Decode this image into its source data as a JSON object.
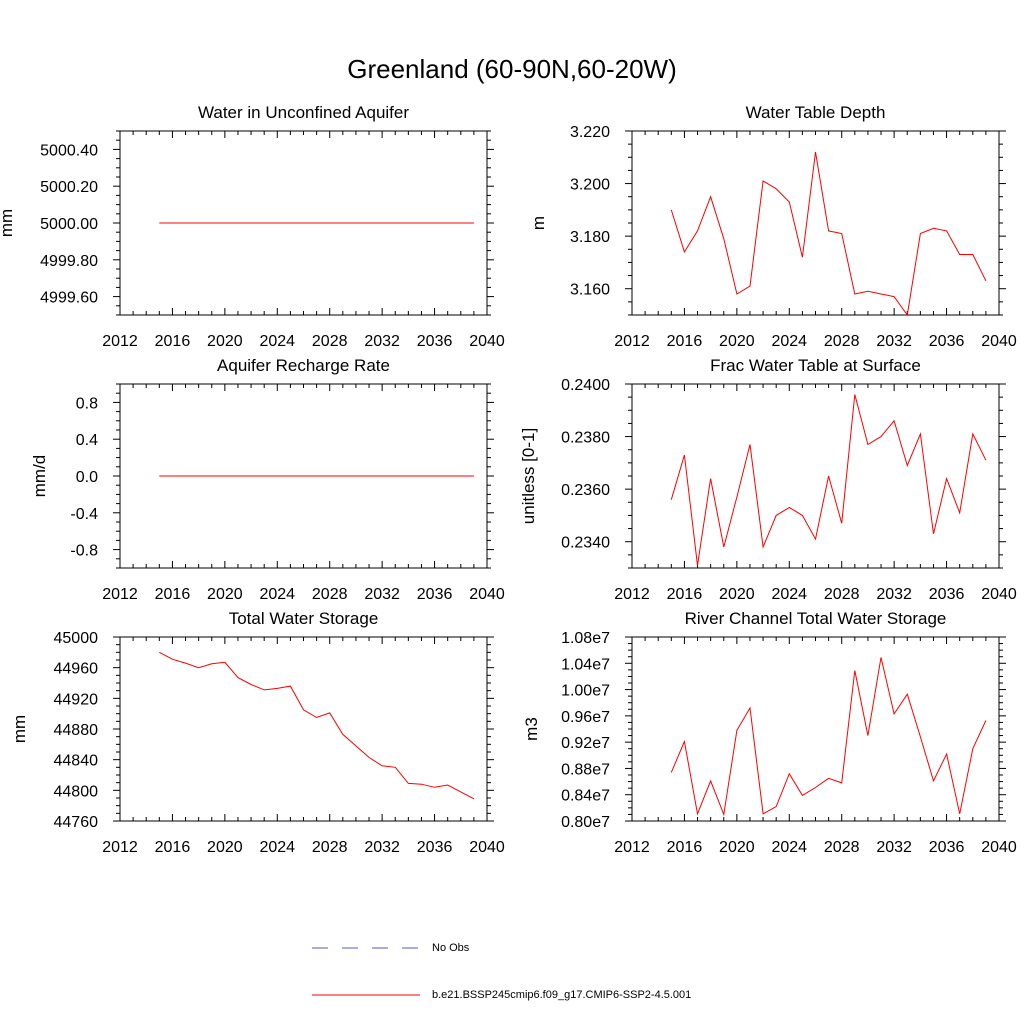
{
  "figure": {
    "title": "Greenland (60-90N,60-20W)"
  },
  "legend": [
    {
      "label": "No Obs",
      "color": "#5a5ab4",
      "style": "dashed"
    },
    {
      "label": "b.e21.BSSP245cmip6.f09_g17.CMIP6-SSP2-4.5.001",
      "color": "#ff0000",
      "style": "solid"
    }
  ],
  "chart_data": [
    {
      "type": "line",
      "title": "Water in Unconfined Aquifer",
      "ylabel": "mm",
      "xlim": [
        2012,
        2040
      ],
      "ylim": [
        4999.5,
        5000.5
      ],
      "xticks": [
        2012,
        2016,
        2020,
        2024,
        2028,
        2032,
        2036,
        2040
      ],
      "yticks": [
        4999.6,
        4999.8,
        5000.0,
        5000.2,
        5000.4
      ],
      "ytick_labels": [
        "4999.60",
        "4999.80",
        "5000.00",
        "5000.20",
        "5000.40"
      ],
      "series": [
        {
          "color": "#ff0000",
          "x": [
            2015,
            2016,
            2017,
            2018,
            2019,
            2020,
            2021,
            2022,
            2023,
            2024,
            2025,
            2026,
            2027,
            2028,
            2029,
            2030,
            2031,
            2032,
            2033,
            2034,
            2035,
            2036,
            2037,
            2038,
            2039
          ],
          "y": [
            5000,
            5000,
            5000,
            5000,
            5000,
            5000,
            5000,
            5000,
            5000,
            5000,
            5000,
            5000,
            5000,
            5000,
            5000,
            5000,
            5000,
            5000,
            5000,
            5000,
            5000,
            5000,
            5000,
            5000,
            5000
          ]
        }
      ]
    },
    {
      "type": "line",
      "title": "Water Table Depth",
      "ylabel": "m",
      "xlim": [
        2012,
        2040
      ],
      "ylim": [
        3.15,
        3.22
      ],
      "xticks": [
        2012,
        2016,
        2020,
        2024,
        2028,
        2032,
        2036,
        2040
      ],
      "yticks": [
        3.16,
        3.18,
        3.2,
        3.22
      ],
      "ytick_labels": [
        "3.160",
        "3.180",
        "3.200",
        "3.220"
      ],
      "series": [
        {
          "color": "#ff0000",
          "x": [
            2015,
            2016,
            2017,
            2018,
            2019,
            2020,
            2021,
            2022,
            2023,
            2024,
            2025,
            2026,
            2027,
            2028,
            2029,
            2030,
            2031,
            2032,
            2033,
            2034,
            2035,
            2036,
            2037,
            2038,
            2039
          ],
          "y": [
            3.19,
            3.174,
            3.182,
            3.195,
            3.179,
            3.158,
            3.161,
            3.201,
            3.198,
            3.193,
            3.172,
            3.212,
            3.182,
            3.181,
            3.158,
            3.159,
            3.158,
            3.157,
            3.15,
            3.181,
            3.183,
            3.182,
            3.173,
            3.173,
            3.163
          ]
        }
      ]
    },
    {
      "type": "line",
      "title": "Aquifer Recharge Rate",
      "ylabel": "mm/d",
      "xlim": [
        2012,
        2040
      ],
      "ylim": [
        -1.0,
        1.0
      ],
      "xticks": [
        2012,
        2016,
        2020,
        2024,
        2028,
        2032,
        2036,
        2040
      ],
      "yticks": [
        -0.8,
        -0.4,
        0.0,
        0.4,
        0.8
      ],
      "ytick_labels": [
        "-0.8",
        "-0.4",
        "0.0",
        "0.4",
        "0.8"
      ],
      "series": [
        {
          "color": "#ff0000",
          "x": [
            2015,
            2016,
            2017,
            2018,
            2019,
            2020,
            2021,
            2022,
            2023,
            2024,
            2025,
            2026,
            2027,
            2028,
            2029,
            2030,
            2031,
            2032,
            2033,
            2034,
            2035,
            2036,
            2037,
            2038,
            2039
          ],
          "y": [
            0,
            0,
            0,
            0,
            0,
            0,
            0,
            0,
            0,
            0,
            0,
            0,
            0,
            0,
            0,
            0,
            0,
            0,
            0,
            0,
            0,
            0,
            0,
            0,
            0
          ]
        }
      ]
    },
    {
      "type": "line",
      "title": "Frac Water Table at Surface",
      "ylabel": "unitless [0-1]",
      "xlim": [
        2012,
        2040
      ],
      "ylim": [
        0.233,
        0.24
      ],
      "xticks": [
        2012,
        2016,
        2020,
        2024,
        2028,
        2032,
        2036,
        2040
      ],
      "yticks": [
        0.234,
        0.236,
        0.238,
        0.24
      ],
      "ytick_labels": [
        "0.2340",
        "0.2360",
        "0.2380",
        "0.2400"
      ],
      "series": [
        {
          "color": "#ff0000",
          "x": [
            2015,
            2016,
            2017,
            2018,
            2019,
            2020,
            2021,
            2022,
            2023,
            2024,
            2025,
            2026,
            2027,
            2028,
            2029,
            2030,
            2031,
            2032,
            2033,
            2034,
            2035,
            2036,
            2037,
            2038,
            2039
          ],
          "y": [
            0.2356,
            0.2373,
            0.2331,
            0.2364,
            0.2338,
            0.2357,
            0.2377,
            0.2338,
            0.235,
            0.2353,
            0.235,
            0.2341,
            0.2365,
            0.2347,
            0.2396,
            0.2377,
            0.238,
            0.2386,
            0.2369,
            0.2381,
            0.2343,
            0.2364,
            0.2351,
            0.2381,
            0.2371
          ]
        }
      ]
    },
    {
      "type": "line",
      "title": "Total Water Storage",
      "ylabel": "mm",
      "xlim": [
        2012,
        2040
      ],
      "ylim": [
        44760,
        45000
      ],
      "xticks": [
        2012,
        2016,
        2020,
        2024,
        2028,
        2032,
        2036,
        2040
      ],
      "yticks": [
        44760,
        44800,
        44840,
        44880,
        44920,
        44960,
        45000
      ],
      "ytick_labels": [
        "44760",
        "44800",
        "44840",
        "44880",
        "44920",
        "44960",
        "45000"
      ],
      "series": [
        {
          "color": "#ff0000",
          "x": [
            2015,
            2016,
            2017,
            2018,
            2019,
            2020,
            2021,
            2022,
            2023,
            2024,
            2025,
            2026,
            2027,
            2028,
            2029,
            2030,
            2031,
            2032,
            2033,
            2034,
            2035,
            2036,
            2037,
            2038,
            2039
          ],
          "y": [
            44980,
            44971,
            44966,
            44960,
            44965,
            44967,
            44947,
            44938,
            44931,
            44933,
            44936,
            44905,
            44895,
            44901,
            44873,
            44858,
            44843,
            44832,
            44830,
            44809,
            44808,
            44804,
            44807,
            44798,
            44789
          ]
        }
      ]
    },
    {
      "type": "line",
      "title": "River Channel Total Water Storage",
      "ylabel": "m3",
      "xlim": [
        2012,
        2040
      ],
      "ylim": [
        8000000,
        10800000
      ],
      "xticks": [
        2012,
        2016,
        2020,
        2024,
        2028,
        2032,
        2036,
        2040
      ],
      "yticks": [
        8000000,
        8400000,
        8800000,
        9200000,
        9600000,
        10000000,
        10400000,
        10800000
      ],
      "ytick_labels": [
        "0.80e7",
        "0.84e7",
        "0.88e7",
        "0.92e7",
        "0.96e7",
        "1.00e7",
        "1.04e7",
        "1.08e7"
      ],
      "series": [
        {
          "color": "#ff0000",
          "x": [
            2015,
            2016,
            2017,
            2018,
            2019,
            2020,
            2021,
            2022,
            2023,
            2024,
            2025,
            2026,
            2027,
            2028,
            2029,
            2030,
            2031,
            2032,
            2033,
            2034,
            2035,
            2036,
            2037,
            2038,
            2039
          ],
          "y": [
            8740000,
            9210000,
            8110000,
            8610000,
            8100000,
            9380000,
            9720000,
            8110000,
            8220000,
            8720000,
            8390000,
            8510000,
            8650000,
            8580000,
            10290000,
            9300000,
            10490000,
            9630000,
            9930000,
            9280000,
            8610000,
            9020000,
            8110000,
            9100000,
            9530000
          ]
        }
      ]
    }
  ]
}
